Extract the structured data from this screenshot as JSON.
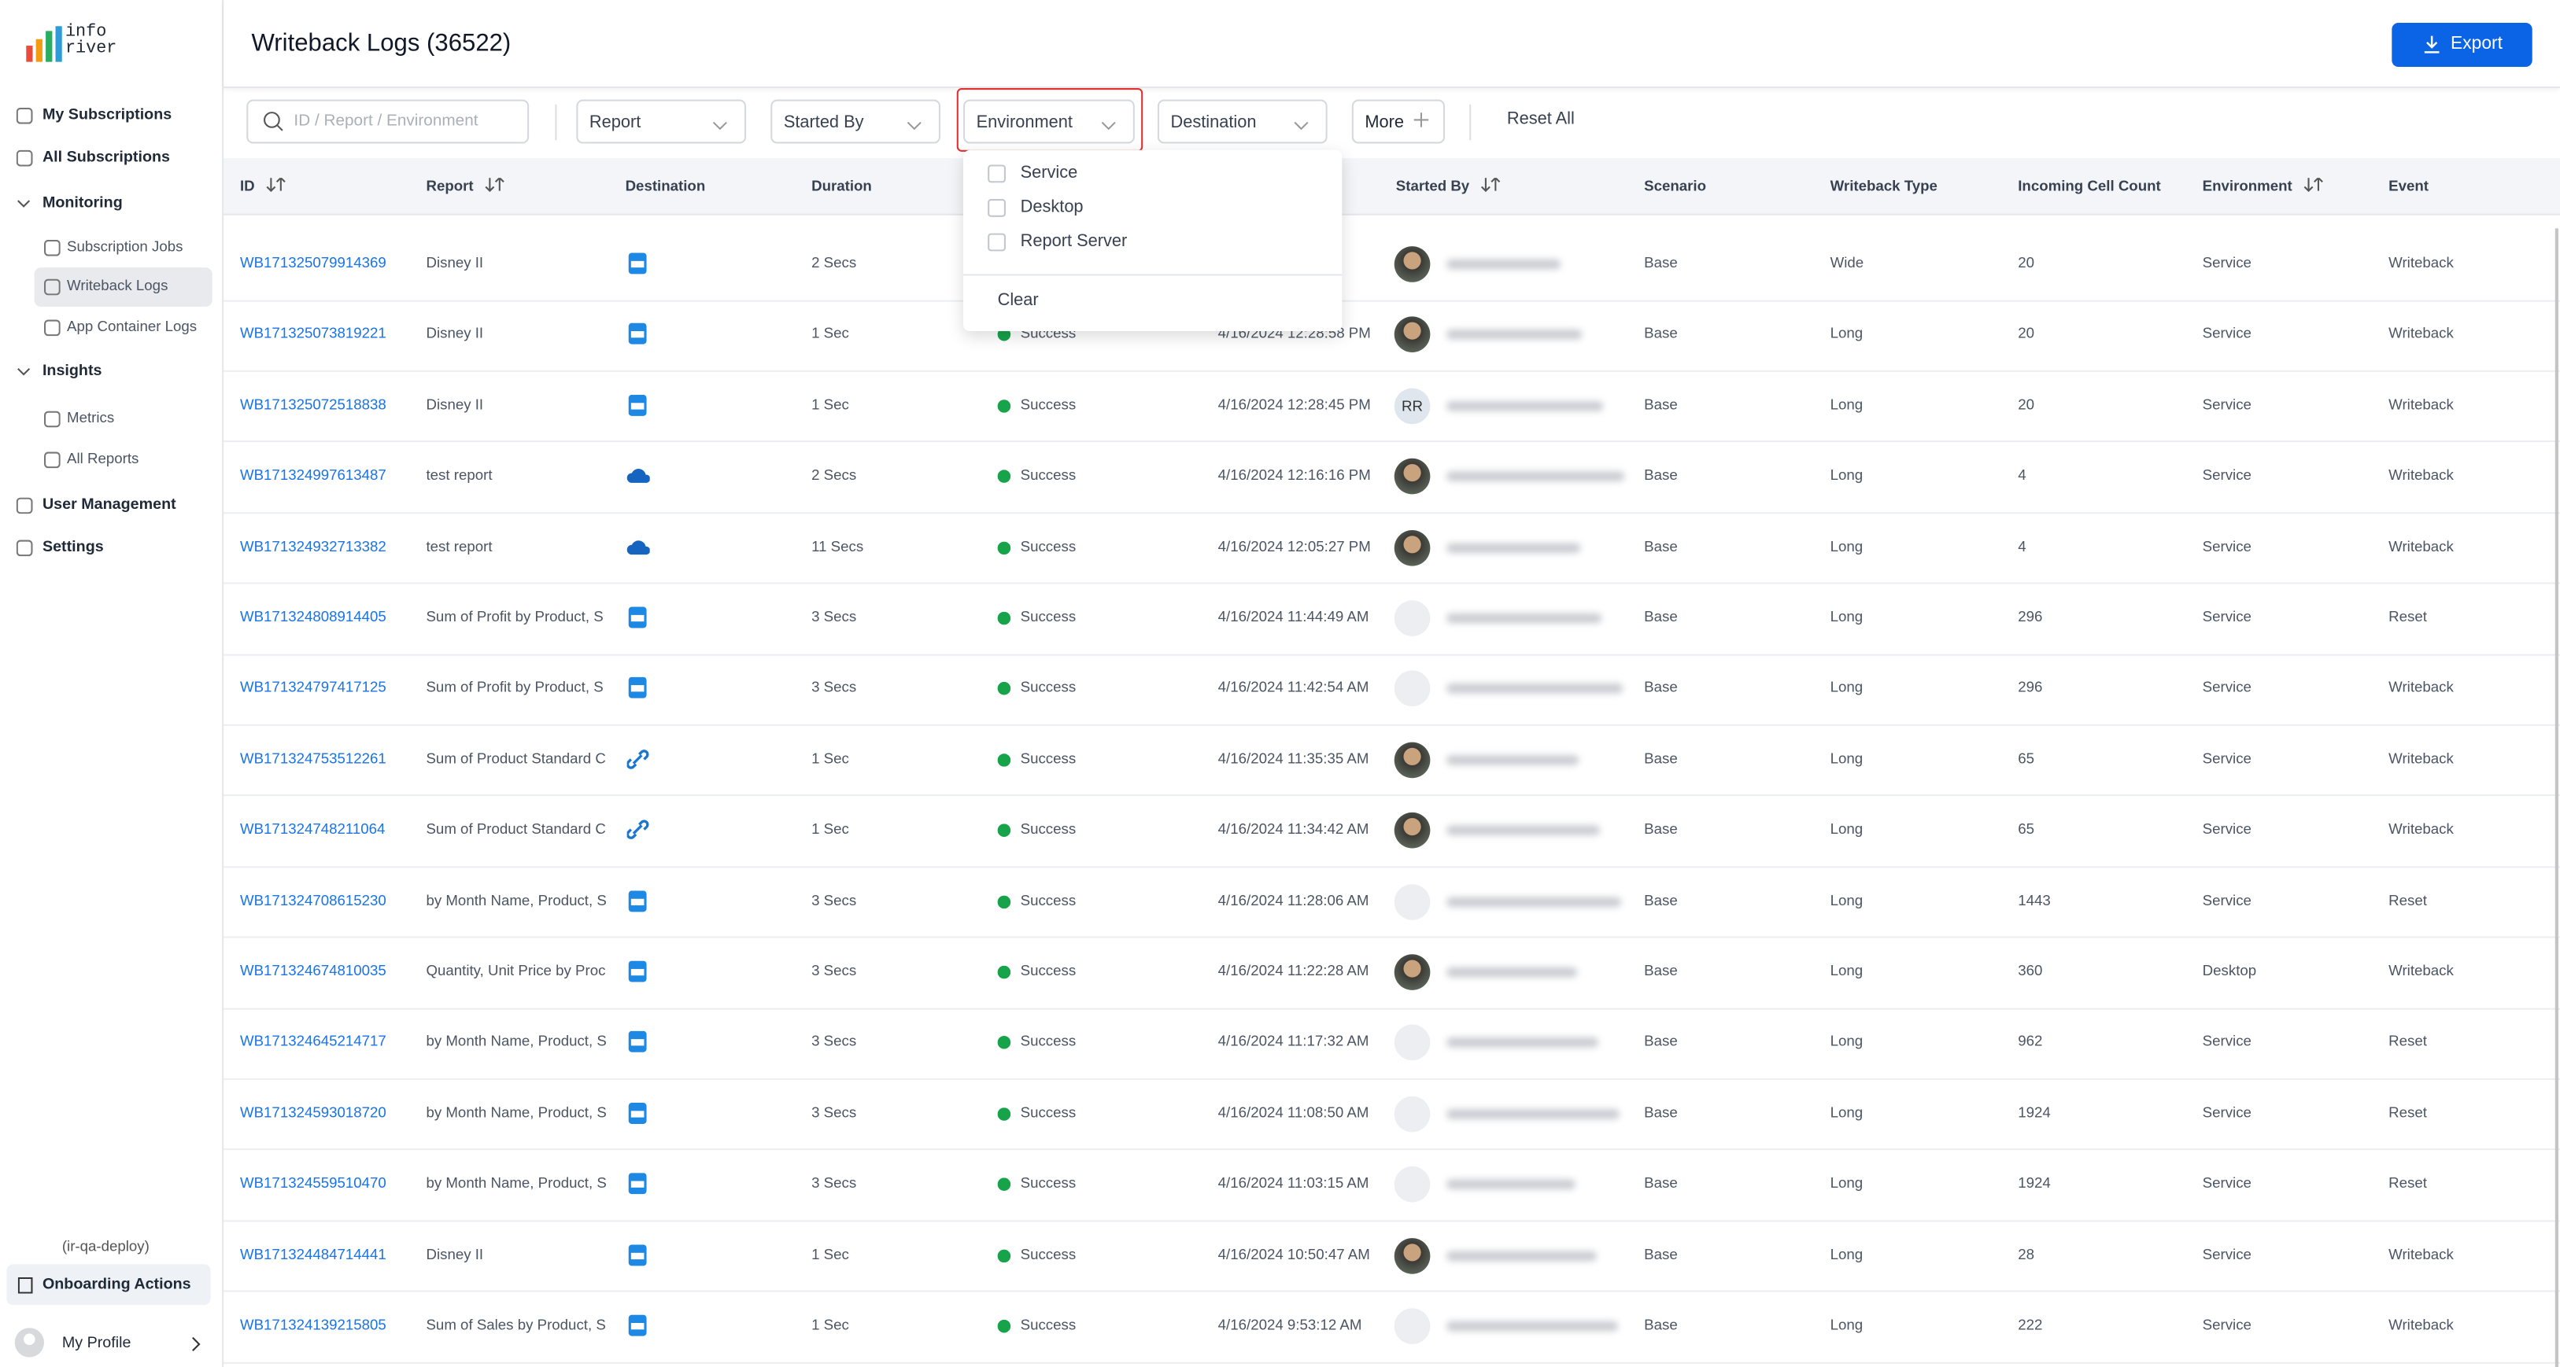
{
  "app": {
    "logo": {
      "line1": "info",
      "line2": "river"
    },
    "header": {
      "title": "Writeback Logs (36522)",
      "export": "Export"
    },
    "sidebar": {
      "items": [
        {
          "label": "My Subscriptions",
          "level": 0
        },
        {
          "label": "All Subscriptions",
          "level": 0
        },
        {
          "label": "Monitoring",
          "level": 0,
          "group": true
        },
        {
          "label": "Subscription Jobs",
          "level": 1
        },
        {
          "label": "Writeback Logs",
          "level": 1,
          "active": true
        },
        {
          "label": "App Container Logs",
          "level": 1
        },
        {
          "label": "Insights",
          "level": 0,
          "group": true
        },
        {
          "label": "Metrics",
          "level": 1
        },
        {
          "label": "All Reports",
          "level": 1
        },
        {
          "label": "User Management",
          "level": 0
        },
        {
          "label": "Settings",
          "level": 0
        }
      ],
      "deployment": "(ir-qa-deploy)",
      "onboarding": "Onboarding Actions",
      "profile": "My Profile"
    },
    "filters": {
      "search_placeholder": "ID / Report / Environment",
      "report": "Report",
      "started_by": "Started By",
      "environment": "Environment",
      "destination": "Destination",
      "more": "More",
      "reset": "Reset All"
    },
    "dropdown": {
      "options": [
        "Service",
        "Desktop",
        "Report Server"
      ],
      "clear": "Clear"
    },
    "table": {
      "columns": [
        "ID",
        "Report",
        "Destination",
        "Duration",
        "Started By",
        "Scenario",
        "Writeback Type",
        "Incoming Cell Count",
        "Environment",
        "Event"
      ],
      "rows": [
        {
          "id": "WB171325079914369",
          "report": "Disney II",
          "duration": "2 Secs",
          "scenario": "Base",
          "writeback_type": "Wide",
          "incoming_cell_count": "20",
          "environment": "Service",
          "event": "Writeback"
        },
        {
          "id": "WB171325073819221",
          "report": "Disney II",
          "duration": "1 Sec",
          "status": "Success",
          "started": "4/16/2024 12:28:58 PM",
          "scenario": "Base",
          "writeback_type": "Long",
          "incoming_cell_count": "20",
          "environment": "Service",
          "event": "Writeback"
        },
        {
          "id": "WB171325072518838",
          "report": "Disney II",
          "duration": "1 Sec",
          "status": "Success",
          "started": "4/16/2024 12:28:45 PM",
          "started_by": "RR",
          "scenario": "Base",
          "writeback_type": "Long",
          "incoming_cell_count": "20",
          "environment": "Service",
          "event": "Writeback"
        },
        {
          "id": "WB171324997613487",
          "report": "test report",
          "duration": "2 Secs",
          "status": "Success",
          "started": "4/16/2024 12:16:16 PM",
          "scenario": "Base",
          "writeback_type": "Long",
          "incoming_cell_count": "4",
          "environment": "Service",
          "event": "Writeback"
        },
        {
          "id": "WB171324932713382",
          "report": "test report",
          "duration": "11 Secs",
          "status": "Success",
          "started": "4/16/2024 12:05:27 PM",
          "scenario": "Base",
          "writeback_type": "Long",
          "incoming_cell_count": "4",
          "environment": "Service",
          "event": "Writeback"
        },
        {
          "id": "WB171324808914405",
          "report": "Sum of Profit by Product, S",
          "duration": "3 Secs",
          "status": "Success",
          "started": "4/16/2024 11:44:49 AM",
          "scenario": "Base",
          "writeback_type": "Long",
          "incoming_cell_count": "296",
          "environment": "Service",
          "event": "Reset"
        },
        {
          "id": "WB171324797417125",
          "report": "Sum of Profit by Product, S",
          "duration": "3 Secs",
          "status": "Success",
          "started": "4/16/2024 11:42:54 AM",
          "scenario": "Base",
          "writeback_type": "Long",
          "incoming_cell_count": "296",
          "environment": "Service",
          "event": "Writeback"
        },
        {
          "id": "WB171324753512261",
          "report": "Sum of Product Standard C",
          "duration": "1 Sec",
          "status": "Success",
          "started": "4/16/2024 11:35:35 AM",
          "scenario": "Base",
          "writeback_type": "Long",
          "incoming_cell_count": "65",
          "environment": "Service",
          "event": "Writeback"
        },
        {
          "id": "WB171324748211064",
          "report": "Sum of Product Standard C",
          "duration": "1 Sec",
          "status": "Success",
          "started": "4/16/2024 11:34:42 AM",
          "scenario": "Base",
          "writeback_type": "Long",
          "incoming_cell_count": "65",
          "environment": "Service",
          "event": "Writeback"
        },
        {
          "id": "WB171324708615230",
          "report": "by Month Name, Product, S",
          "duration": "3 Secs",
          "status": "Success",
          "started": "4/16/2024 11:28:06 AM",
          "scenario": "Base",
          "writeback_type": "Long",
          "incoming_cell_count": "1443",
          "environment": "Service",
          "event": "Reset"
        },
        {
          "id": "WB171324674810035",
          "report": "Quantity, Unit Price by Proc",
          "duration": "3 Secs",
          "status": "Success",
          "started": "4/16/2024 11:22:28 AM",
          "scenario": "Base",
          "writeback_type": "Long",
          "incoming_cell_count": "360",
          "environment": "Desktop",
          "event": "Writeback"
        },
        {
          "id": "WB171324645214717",
          "report": "by Month Name, Product, S",
          "duration": "3 Secs",
          "status": "Success",
          "started": "4/16/2024 11:17:32 AM",
          "scenario": "Base",
          "writeback_type": "Long",
          "incoming_cell_count": "962",
          "environment": "Service",
          "event": "Reset"
        },
        {
          "id": "WB171324593018720",
          "report": "by Month Name, Product, S",
          "duration": "3 Secs",
          "status": "Success",
          "started": "4/16/2024 11:08:50 AM",
          "scenario": "Base",
          "writeback_type": "Long",
          "incoming_cell_count": "1924",
          "environment": "Service",
          "event": "Reset"
        },
        {
          "id": "WB171324559510470",
          "report": "by Month Name, Product, S",
          "duration": "3 Secs",
          "status": "Success",
          "started": "4/16/2024 11:03:15 AM",
          "scenario": "Base",
          "writeback_type": "Long",
          "incoming_cell_count": "1924",
          "environment": "Service",
          "event": "Reset"
        },
        {
          "id": "WB171324484714441",
          "report": "Disney II",
          "duration": "1 Sec",
          "status": "Success",
          "started": "4/16/2024 10:50:47 AM",
          "scenario": "Base",
          "writeback_type": "Long",
          "incoming_cell_count": "28",
          "environment": "Service",
          "event": "Writeback"
        },
        {
          "id": "WB171324139215805",
          "report": "Sum of Sales by Product, S",
          "duration": "1 Sec",
          "status": "Success",
          "started": "4/16/2024 9:53:12 AM",
          "scenario": "Base",
          "writeback_type": "Long",
          "incoming_cell_count": "222",
          "environment": "Service",
          "event": "Writeback"
        }
      ]
    }
  }
}
